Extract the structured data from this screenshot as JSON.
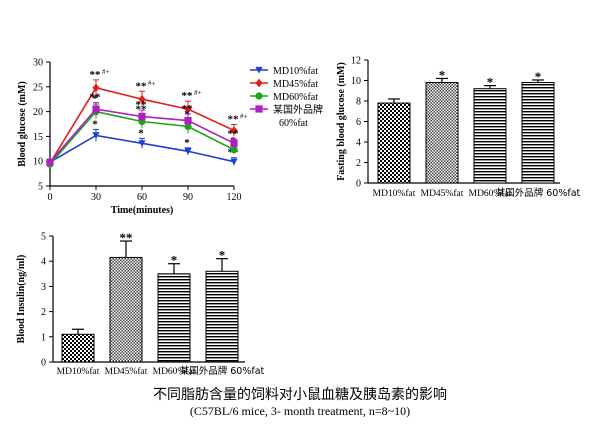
{
  "chart_data": [
    {
      "type": "line",
      "ylabel": "Blood glucose (mM)",
      "xlabel": "Time(minutes)",
      "x": [
        0,
        30,
        60,
        90,
        120
      ],
      "xlim": [
        0,
        120
      ],
      "ylim": [
        5,
        30
      ],
      "yticks": [
        5,
        10,
        15,
        20,
        25,
        30
      ],
      "xticks": [
        0,
        30,
        60,
        90,
        120
      ],
      "legend_position": "right",
      "series": [
        {
          "name": "MD10%fat",
          "values": [
            9.8,
            15.2,
            13.6,
            12.0,
            9.9
          ],
          "errors": [
            0.4,
            1.2,
            1.0,
            0.7,
            0.8
          ],
          "color": "#1f3fd1",
          "marker": "triangle-down",
          "sig": [
            "",
            "*",
            "*",
            "*",
            "**"
          ]
        },
        {
          "name": "MD45%fat",
          "values": [
            9.6,
            24.8,
            22.5,
            20.5,
            16.2
          ],
          "errors": [
            0.4,
            1.6,
            1.6,
            1.6,
            1.2
          ],
          "color": "#e0201b",
          "marker": "diamond",
          "sig": [
            "",
            "**#+",
            "**#+",
            "**#+",
            "**#+"
          ]
        },
        {
          "name": "MD60%fat",
          "values": [
            9.4,
            20.0,
            18.0,
            17.0,
            12.3
          ],
          "errors": [
            0.4,
            1.5,
            1.4,
            1.4,
            0.8
          ],
          "color": "#19a814",
          "marker": "circle",
          "sig": [
            "",
            "*",
            "**",
            "*",
            "*"
          ]
        },
        {
          "name": "某国外品牌 60%fat",
          "values": [
            9.8,
            20.5,
            19.0,
            18.2,
            13.6
          ],
          "errors": [
            0.4,
            1.3,
            1.3,
            1.3,
            0.9
          ],
          "color": "#b01fc2",
          "marker": "square",
          "sig": [
            "",
            "**",
            "**",
            "**",
            "**"
          ]
        }
      ]
    },
    {
      "type": "bar",
      "ylabel": "Fasting blood glucose (mM)",
      "categories": [
        "MD10%fat",
        "MD45%fat",
        "MD60%fat",
        "某国外品牌 60%fat"
      ],
      "values": [
        7.8,
        9.8,
        9.2,
        9.8
      ],
      "errors": [
        0.4,
        0.4,
        0.3,
        0.25
      ],
      "sig": [
        "",
        "*",
        "*",
        "*"
      ],
      "ylim": [
        0,
        12
      ],
      "yticks": [
        0,
        2,
        4,
        6,
        8,
        10,
        12
      ]
    },
    {
      "type": "bar",
      "ylabel": "Blood Insulin(ng/ml)",
      "categories": [
        "MD10%fat",
        "MD45%fat",
        "MD60%fat",
        "某国外品牌 60%fat"
      ],
      "values": [
        1.1,
        4.15,
        3.5,
        3.6
      ],
      "errors": [
        0.2,
        0.65,
        0.4,
        0.5
      ],
      "sig": [
        "",
        "**",
        "*",
        "*"
      ],
      "ylim": [
        0,
        5
      ],
      "yticks": [
        0,
        1,
        2,
        3,
        4,
        5
      ]
    }
  ],
  "caption": {
    "title": "不同脂肪含量的饲料对小鼠血糖及胰岛素的影响",
    "subtitle": "(C57BL/6  mice, 3- month treatment, n=8~10)"
  }
}
